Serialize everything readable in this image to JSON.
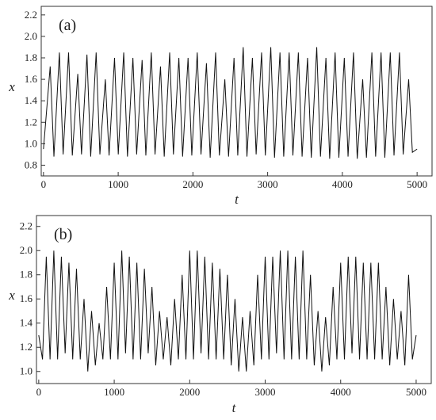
{
  "chart_data": [
    {
      "type": "line",
      "panel_label": "(a)",
      "x_label": "t",
      "y_label": "x",
      "xlim": [
        -30,
        5200
      ],
      "ylim": [
        0.7,
        2.28
      ],
      "xticks": [
        0,
        1000,
        2000,
        3000,
        4000,
        5000
      ],
      "yticks": [
        0.8,
        {
          "value": 1.0,
          "label": "1.0"
        },
        1.2,
        1.4,
        1.6,
        1.8,
        {
          "value": 2.0,
          "label": "2.0"
        },
        2.2
      ],
      "series": [
        {
          "color": "#111111",
          "x": [
            0,
            90,
            140,
            213,
            263,
            336,
            386,
            459,
            509,
            582,
            632,
            705,
            755,
            828,
            878,
            951,
            1001,
            1074,
            1124,
            1197,
            1247,
            1320,
            1370,
            1443,
            1493,
            1566,
            1616,
            1689,
            1739,
            1812,
            1862,
            1935,
            1985,
            2058,
            2108,
            2181,
            2231,
            2304,
            2354,
            2427,
            2477,
            2550,
            2600,
            2673,
            2723,
            2796,
            2846,
            2919,
            2969,
            3042,
            3092,
            3165,
            3215,
            3288,
            3338,
            3411,
            3461,
            3534,
            3584,
            3657,
            3707,
            3780,
            3830,
            3903,
            3953,
            4026,
            4076,
            4149,
            4199,
            4272,
            4322,
            4395,
            4445,
            4518,
            4568,
            4641,
            4691,
            4764,
            4814,
            4887,
            4937,
            5000
          ],
          "values": [
            0.95,
            1.72,
            0.88,
            1.85,
            0.9,
            1.85,
            0.89,
            1.65,
            0.9,
            1.83,
            0.88,
            1.85,
            0.9,
            1.6,
            0.89,
            1.8,
            0.9,
            1.85,
            0.88,
            1.8,
            0.9,
            1.78,
            0.89,
            1.85,
            0.9,
            1.72,
            0.88,
            1.85,
            0.9,
            1.8,
            0.88,
            1.8,
            0.89,
            1.85,
            0.9,
            1.75,
            0.87,
            1.85,
            0.89,
            1.6,
            0.88,
            1.8,
            0.89,
            1.9,
            0.88,
            1.8,
            0.9,
            1.85,
            0.89,
            1.9,
            0.87,
            1.85,
            0.88,
            1.85,
            0.89,
            1.85,
            0.88,
            1.8,
            0.87,
            1.9,
            0.88,
            1.8,
            0.86,
            1.85,
            0.87,
            1.8,
            0.88,
            1.85,
            0.86,
            1.6,
            0.87,
            1.85,
            0.88,
            1.85,
            0.87,
            1.85,
            0.89,
            1.85,
            0.9,
            1.6,
            0.92,
            0.95
          ]
        }
      ]
    },
    {
      "type": "line",
      "panel_label": "(b)",
      "x_label": "t",
      "y_label": "x",
      "xlim": [
        -30,
        5200
      ],
      "ylim": [
        0.9,
        2.29
      ],
      "xticks": [
        0,
        1000,
        2000,
        3000,
        4000,
        5000
      ],
      "yticks": [
        {
          "value": 1.0,
          "label": "1.0"
        },
        1.2,
        1.4,
        1.6,
        1.8,
        {
          "value": 2.0,
          "label": "2.0"
        },
        2.2
      ],
      "series": [
        {
          "color": "#111111",
          "x": [
            0,
            50,
            100,
            150,
            200,
            250,
            300,
            350,
            400,
            450,
            500,
            550,
            600,
            650,
            700,
            750,
            800,
            850,
            900,
            950,
            1000,
            1050,
            1100,
            1150,
            1200,
            1250,
            1300,
            1350,
            1400,
            1450,
            1500,
            1550,
            1600,
            1650,
            1700,
            1750,
            1800,
            1850,
            1900,
            1950,
            2000,
            2050,
            2100,
            2150,
            2200,
            2250,
            2300,
            2350,
            2400,
            2450,
            2500,
            2550,
            2600,
            2650,
            2700,
            2750,
            2800,
            2850,
            2900,
            2950,
            3000,
            3050,
            3100,
            3150,
            3200,
            3250,
            3300,
            3350,
            3400,
            3450,
            3500,
            3550,
            3600,
            3650,
            3700,
            3750,
            3800,
            3850,
            3900,
            3950,
            4000,
            4050,
            4100,
            4150,
            4200,
            4250,
            4300,
            4350,
            4400,
            4450,
            4500,
            4550,
            4600,
            4650,
            4700,
            4750,
            4800,
            4850,
            4900,
            4950,
            5000
          ],
          "values": [
            1.3,
            1.1,
            1.95,
            1.1,
            2.0,
            1.1,
            1.95,
            1.15,
            1.9,
            1.1,
            1.85,
            1.1,
            1.6,
            1.0,
            1.5,
            1.05,
            1.4,
            1.1,
            1.7,
            1.1,
            1.9,
            1.1,
            2.0,
            1.15,
            1.95,
            1.1,
            1.9,
            1.1,
            1.85,
            1.15,
            1.7,
            1.05,
            1.5,
            1.1,
            1.45,
            1.05,
            1.6,
            1.1,
            1.8,
            1.1,
            2.0,
            1.1,
            2.0,
            1.15,
            1.95,
            1.1,
            1.9,
            1.1,
            1.85,
            1.1,
            1.8,
            1.05,
            1.6,
            1.0,
            1.45,
            1.0,
            1.5,
            1.05,
            1.8,
            1.1,
            1.95,
            1.1,
            1.95,
            1.15,
            2.0,
            1.1,
            2.0,
            1.1,
            1.95,
            1.1,
            2.0,
            1.1,
            1.8,
            1.05,
            1.5,
            1.0,
            1.45,
            1.05,
            1.7,
            1.1,
            1.9,
            1.1,
            1.95,
            1.15,
            1.95,
            1.1,
            1.9,
            1.1,
            1.9,
            1.1,
            1.9,
            1.1,
            1.7,
            1.05,
            1.6,
            1.1,
            1.5,
            1.05,
            1.8,
            1.1,
            1.3
          ]
        }
      ]
    }
  ]
}
